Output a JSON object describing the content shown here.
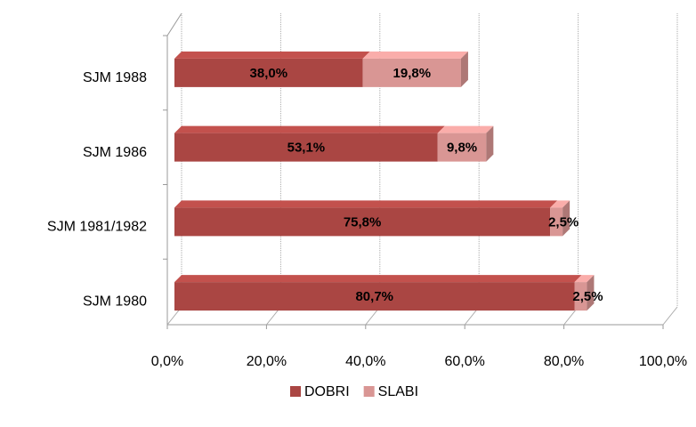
{
  "chart_data": {
    "type": "bar",
    "orientation": "horizontal",
    "stacked": true,
    "categories": [
      "SJM 1988",
      "SJM 1986",
      "SJM 1981/1982",
      "SJM 1980"
    ],
    "series": [
      {
        "name": "DOBRI",
        "color": "#aa4643",
        "values": [
          38.0,
          53.1,
          75.8,
          80.7
        ],
        "value_labels": [
          "38,0%",
          "53,1%",
          "75,8%",
          "80,7%"
        ]
      },
      {
        "name": "SLABI",
        "color": "#d99694",
        "values": [
          19.8,
          9.8,
          2.5,
          2.5
        ],
        "value_labels": [
          "19,8%",
          "9,8%",
          "2,5%",
          "2,5%"
        ]
      }
    ],
    "xlim": [
      0,
      100
    ],
    "xticks": [
      {
        "value": 0,
        "label": "0,0%"
      },
      {
        "value": 20,
        "label": "20,0%"
      },
      {
        "value": 40,
        "label": "40,0%"
      },
      {
        "value": 60,
        "label": "60,0%"
      },
      {
        "value": 80,
        "label": "80,0%"
      },
      {
        "value": 100,
        "label": "100,0%"
      }
    ],
    "grid": true,
    "legend": "bottom"
  }
}
